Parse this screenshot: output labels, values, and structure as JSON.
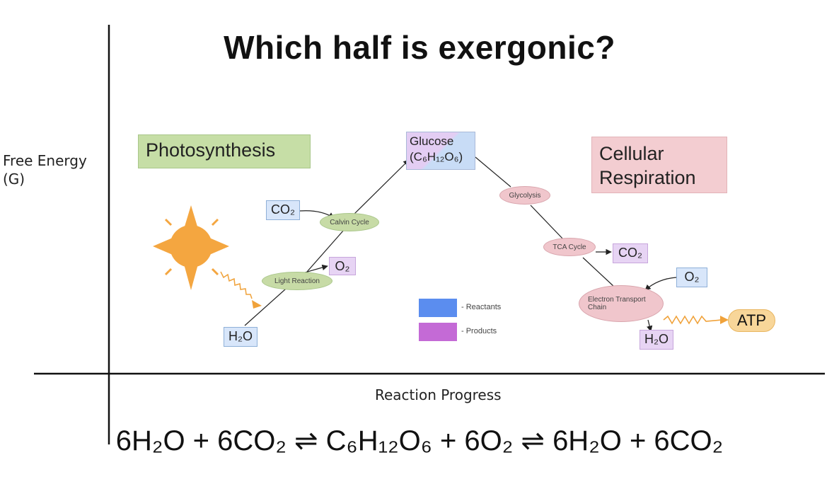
{
  "title": "Which half is exergonic?",
  "axes": {
    "y_label": "Free Energy\n(G)",
    "x_label": "Reaction Progress"
  },
  "panels": {
    "photosynthesis": "Photosynthesis",
    "respiration": "Cellular\nRespiration"
  },
  "nodes": {
    "h2o_start": "H₂O",
    "co2_in": "CO₂",
    "light_reaction": "Light Reaction",
    "o2_out": "O₂",
    "calvin_cycle": "Calvin Cycle",
    "glucose": "Glucose\n(C₆H₁₂O₆)",
    "glycolysis": "Glycolysis",
    "tca_cycle": "TCA Cycle",
    "co2_out": "CO₂",
    "o2_in": "O₂",
    "etc": "Electron Transport\nChain",
    "h2o_end": "H₂O",
    "atp": "ATP"
  },
  "legend": {
    "reactants": "- Reactants",
    "products": "- Products"
  },
  "colors": {
    "reactant": "#5b8def",
    "product": "#c46ad6",
    "photosynthesis": "#c6dea6",
    "respiration": "#f3cdd1",
    "sun": "#f4a640",
    "atp": "#f8d699"
  },
  "icons": {
    "sun": "sun-icon",
    "light_wave": "wavy-arrow-icon"
  },
  "equation": "6H₂O + 6CO₂ ⇌ C₆H₁₂O₆ + 6O₂ ⇌ 6H₂O + 6CO₂"
}
